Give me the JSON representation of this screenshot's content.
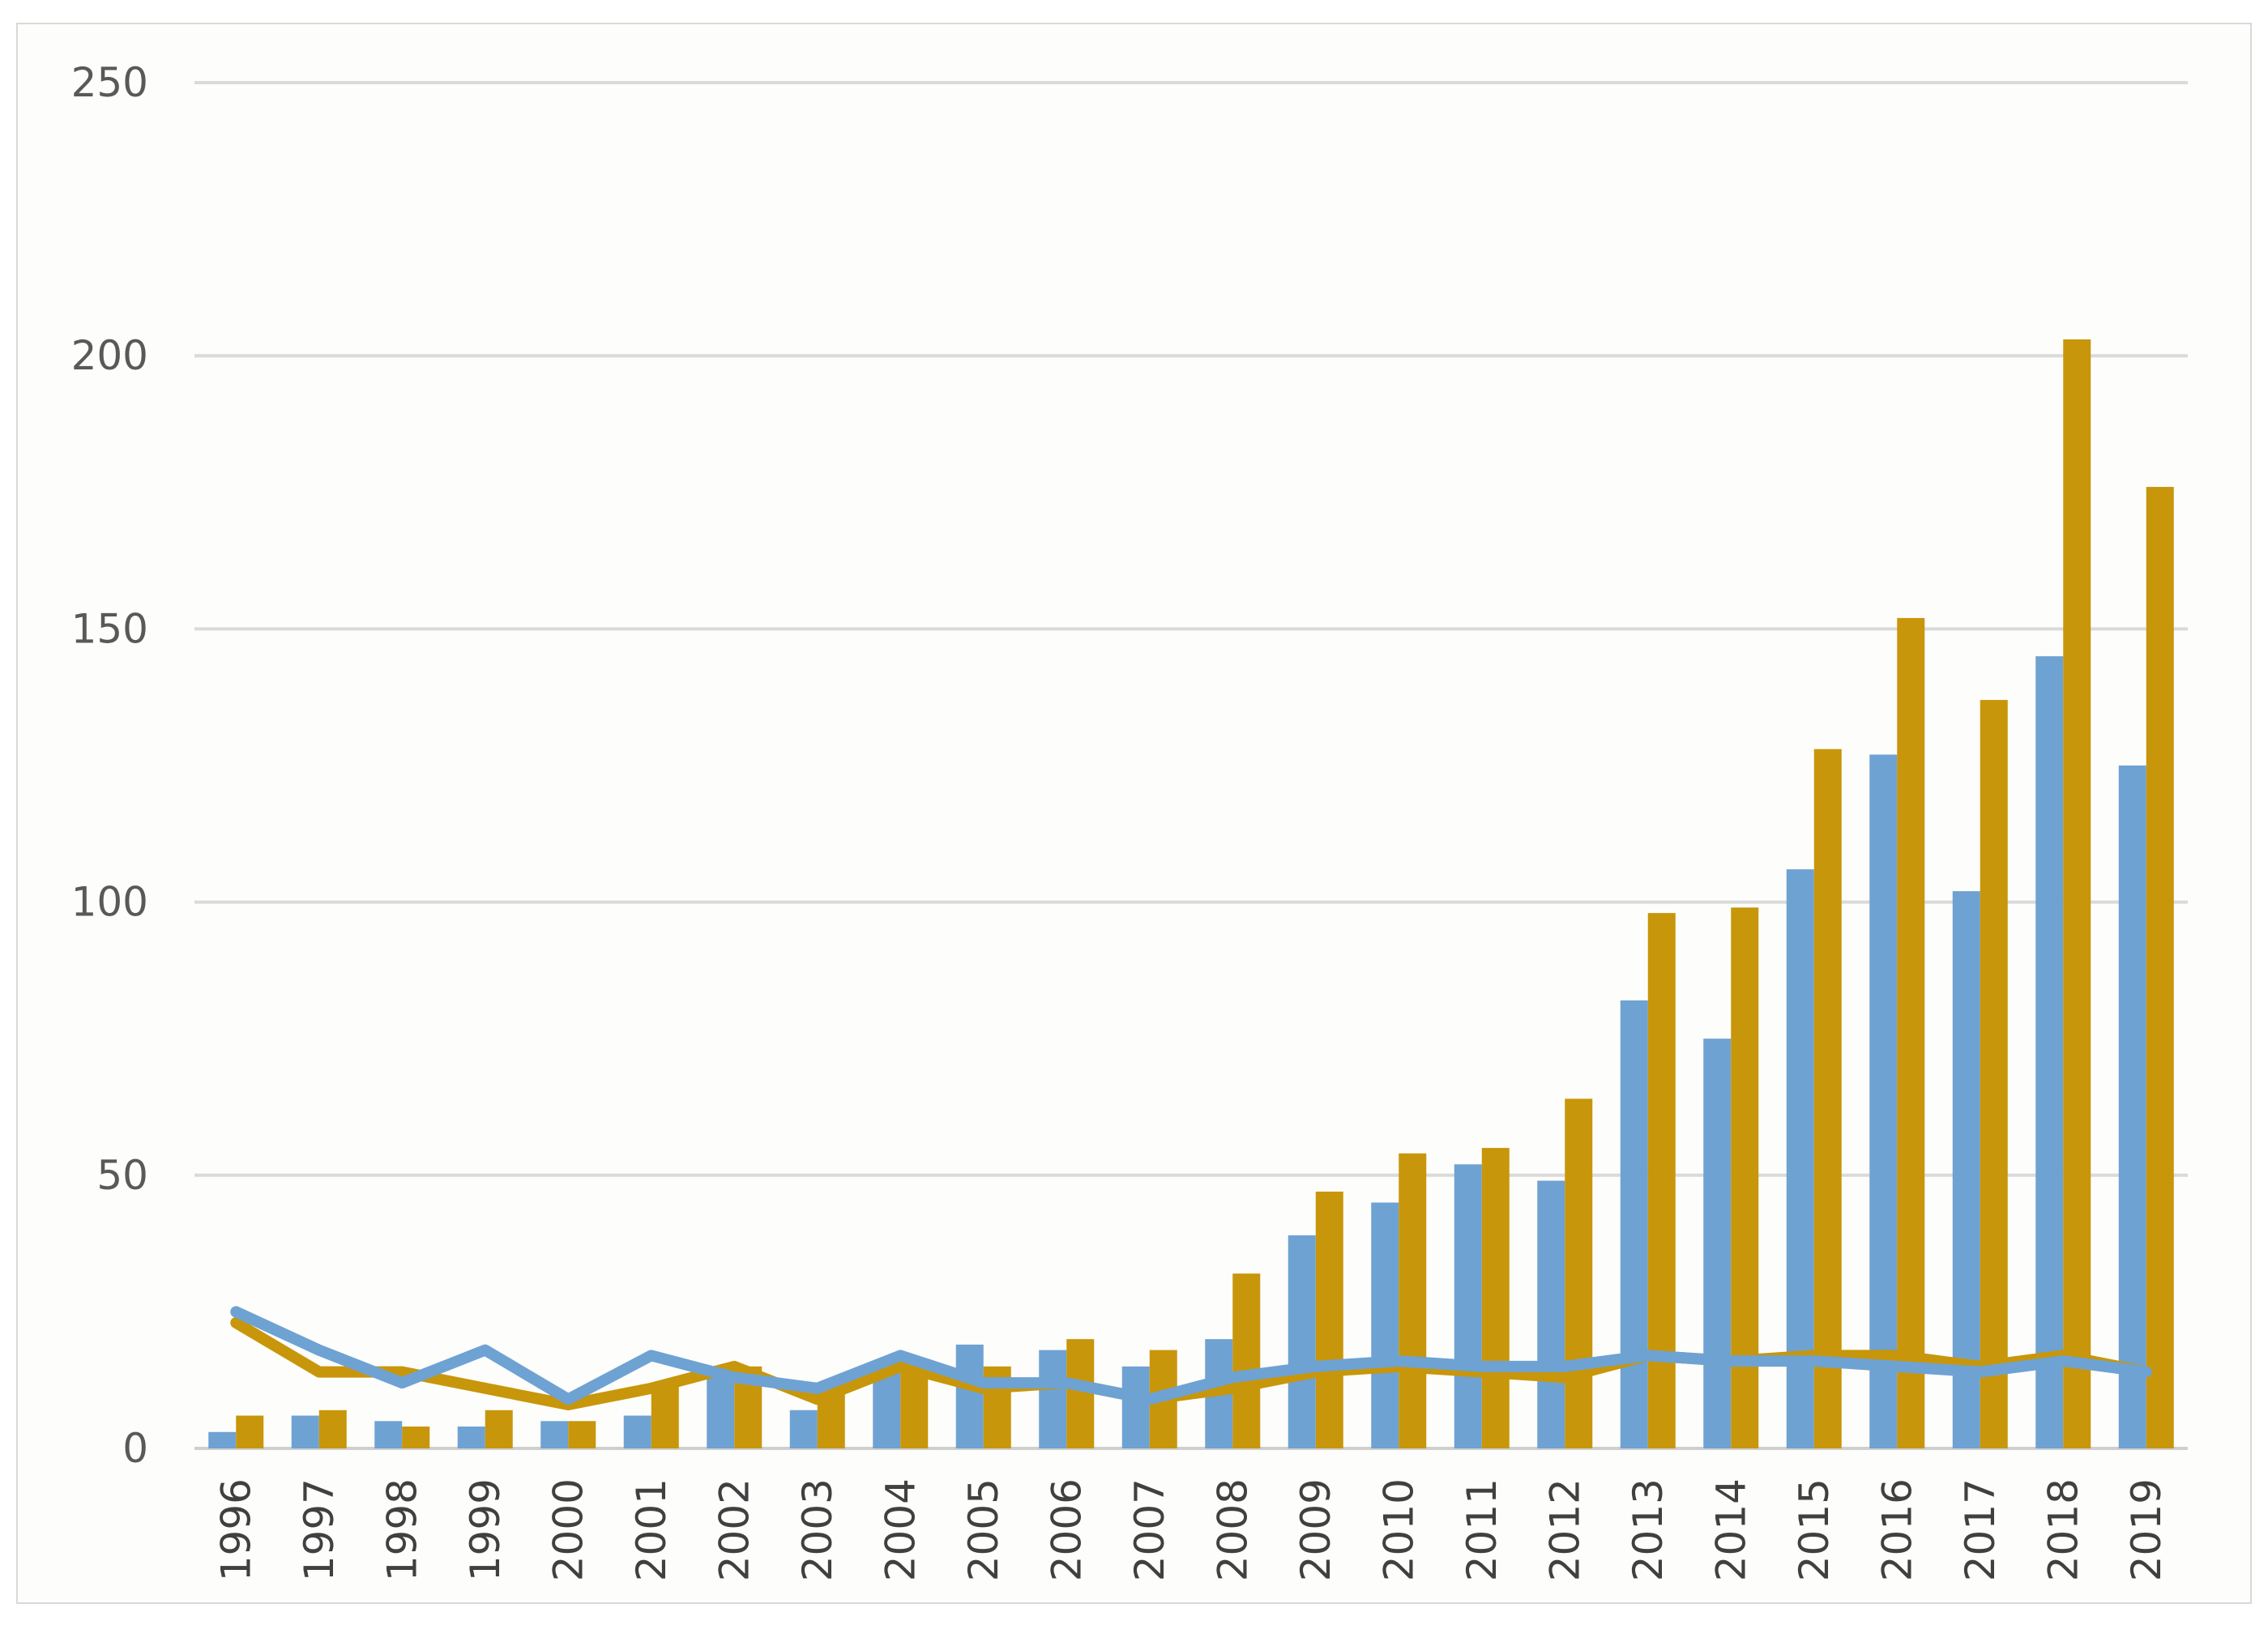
{
  "chart_data": {
    "type": "bar",
    "title": "",
    "xlabel": "",
    "ylabel": "",
    "ylim": [
      0,
      250
    ],
    "yticks": [
      0,
      50,
      100,
      150,
      200,
      250
    ],
    "grid": true,
    "legend": "none",
    "categories": [
      "1996",
      "1997",
      "1998",
      "1999",
      "2000",
      "2001",
      "2002",
      "2003",
      "2004",
      "2005",
      "2006",
      "2007",
      "2008",
      "2009",
      "2010",
      "2011",
      "2012",
      "2013",
      "2014",
      "2015",
      "2016",
      "2017",
      "2018",
      "2019"
    ],
    "series": [
      {
        "type": "bar",
        "color": "#6ea2d2",
        "values": [
          3,
          6,
          5,
          4,
          5,
          6,
          13,
          7,
          16,
          19,
          18,
          15,
          20,
          39,
          45,
          52,
          49,
          82,
          75,
          106,
          127,
          102,
          145,
          125
        ]
      },
      {
        "type": "bar",
        "color": "#c8960a",
        "values": [
          6,
          7,
          4,
          7,
          5,
          12,
          15,
          11,
          14,
          15,
          20,
          18,
          32,
          47,
          54,
          55,
          64,
          98,
          99,
          128,
          152,
          137,
          203,
          176
        ]
      },
      {
        "type": "line",
        "color": "#6ea2d2",
        "values": [
          25,
          18,
          12,
          18,
          9,
          17,
          13,
          11,
          17,
          12,
          12,
          9,
          13,
          15,
          16,
          15,
          15,
          17,
          16,
          16,
          15,
          14,
          16,
          14
        ]
      },
      {
        "type": "line",
        "color": "#c8960a",
        "values": [
          23,
          14,
          14,
          11,
          8,
          11,
          15,
          9,
          15,
          11,
          12,
          9,
          11,
          14,
          15,
          14,
          13,
          17,
          16,
          17,
          17,
          15,
          17,
          14
        ]
      }
    ]
  }
}
